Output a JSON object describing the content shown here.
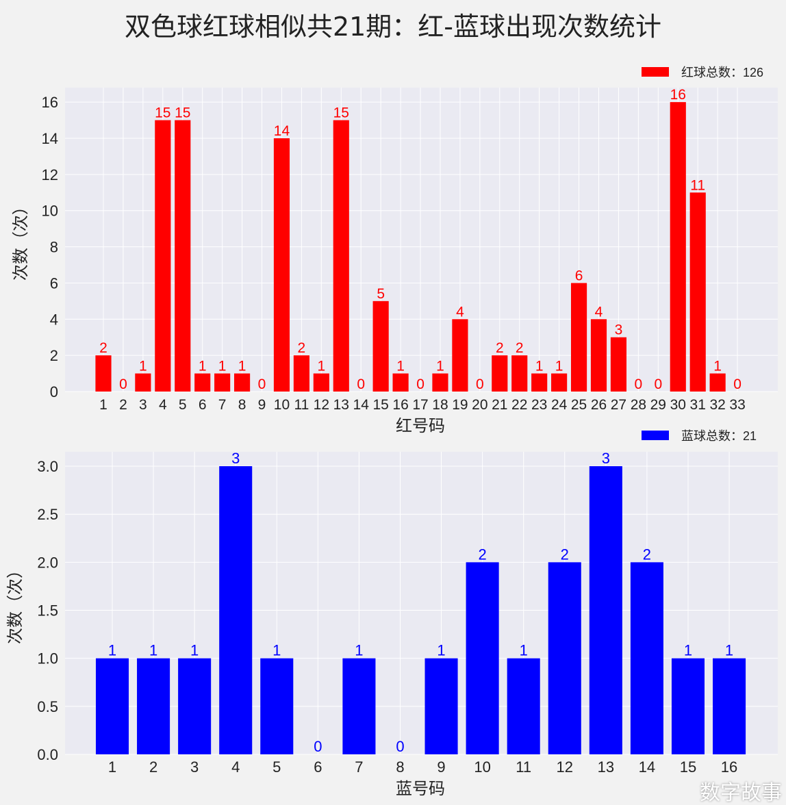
{
  "title": "双色球红球相似共21期：红-蓝球出现次数统计",
  "watermark": "数字故事",
  "chart_data": [
    {
      "type": "bar",
      "name": "red",
      "color": "#ff0000",
      "legend": "红球总数：126",
      "legend_position": "top-right",
      "xlabel": "红号码",
      "ylabel": "次数（次）",
      "categories": [
        "1",
        "2",
        "3",
        "4",
        "5",
        "6",
        "7",
        "8",
        "9",
        "10",
        "11",
        "12",
        "13",
        "14",
        "15",
        "16",
        "17",
        "18",
        "19",
        "20",
        "21",
        "22",
        "23",
        "24",
        "25",
        "26",
        "27",
        "28",
        "29",
        "30",
        "31",
        "32",
        "33"
      ],
      "values": [
        2,
        0,
        1,
        15,
        15,
        1,
        1,
        1,
        0,
        14,
        2,
        1,
        15,
        0,
        5,
        1,
        0,
        1,
        4,
        0,
        2,
        2,
        1,
        1,
        6,
        4,
        3,
        0,
        0,
        16,
        11,
        1,
        0
      ],
      "yticks": [
        "0",
        "2",
        "4",
        "6",
        "8",
        "10",
        "12",
        "14",
        "16"
      ],
      "ytick_values": [
        0,
        2,
        4,
        6,
        8,
        10,
        12,
        14,
        16
      ],
      "ylim": [
        0,
        16.8
      ],
      "grid": true
    },
    {
      "type": "bar",
      "name": "blue",
      "color": "#0000ff",
      "legend": "蓝球总数：21",
      "legend_position": "top-right",
      "xlabel": "蓝号码",
      "ylabel": "次数（次）",
      "categories": [
        "1",
        "2",
        "3",
        "4",
        "5",
        "6",
        "7",
        "8",
        "9",
        "10",
        "11",
        "12",
        "13",
        "14",
        "15",
        "16"
      ],
      "values": [
        1,
        1,
        1,
        3,
        1,
        0,
        1,
        0,
        1,
        2,
        1,
        2,
        3,
        2,
        1,
        1
      ],
      "yticks": [
        "0.0",
        "0.5",
        "1.0",
        "1.5",
        "2.0",
        "2.5",
        "3.0"
      ],
      "ytick_values": [
        0,
        0.5,
        1,
        1.5,
        2,
        2.5,
        3
      ],
      "ylim": [
        0,
        3.15
      ],
      "grid": true
    }
  ]
}
